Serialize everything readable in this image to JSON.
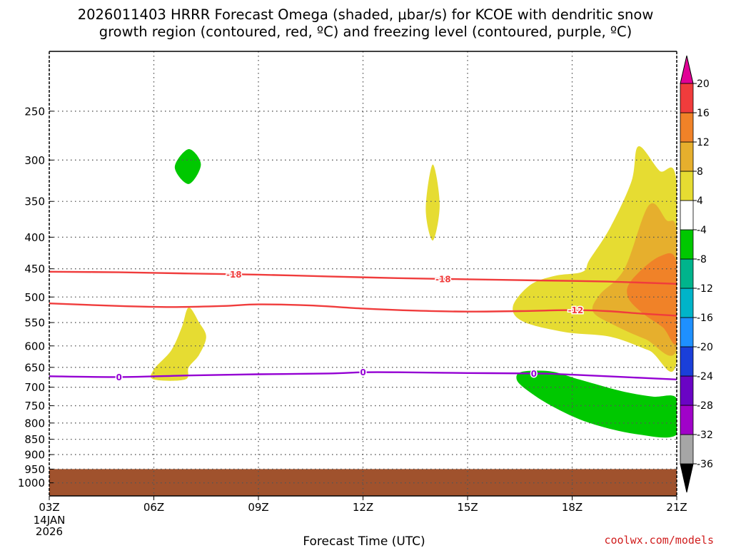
{
  "chart_data": {
    "type": "heatmap",
    "title_line1": "2026011403 HRRR Forecast Omega (shaded, μbar/s) for KCOE with dendritic snow",
    "title_line2": "growth region (contoured, red, ºC) and freezing level (contoured, purple, ºC)",
    "xlabel": "Forecast Time (UTC)",
    "ylabel": "",
    "credit": "coolwx.com/models",
    "x_start_date": [
      "14JAN",
      "2026"
    ],
    "x_ticks": [
      {
        "hour": 3,
        "label": "03Z"
      },
      {
        "hour": 6,
        "label": "06Z"
      },
      {
        "hour": 9,
        "label": "09Z"
      },
      {
        "hour": 12,
        "label": "12Z"
      },
      {
        "hour": 15,
        "label": "15Z"
      },
      {
        "hour": 18,
        "label": "18Z"
      },
      {
        "hour": 21,
        "label": "21Z"
      }
    ],
    "xlim": [
      3,
      21
    ],
    "y_scale": "log",
    "ylim": [
      1050,
      200
    ],
    "y_ticks": [
      250,
      300,
      350,
      400,
      450,
      500,
      550,
      600,
      650,
      700,
      750,
      800,
      850,
      900,
      950,
      1000
    ],
    "grid": true,
    "ground_top_hpa": 950,
    "ground_color": "#a0522d",
    "colorbar": {
      "colors": [
        "#a6a6a6",
        "#a002c8",
        "#6a04c4",
        "#1a3fd9",
        "#1e90ff",
        "#00b4c8",
        "#00b48c",
        "#00c800",
        "#ffffff",
        "#e6dc32",
        "#e6af2d",
        "#f08228",
        "#f03c3c",
        "#e10096"
      ],
      "labels": [
        "-36",
        "-32",
        "-28",
        "-24",
        "-20",
        "-16",
        "-12",
        "-8",
        "-4",
        "4",
        "8",
        "12",
        "16",
        "20"
      ]
    },
    "omega_regions": [
      {
        "color": "#00c800",
        "points": [
          [
            7.0,
            288
          ],
          [
            7.35,
            305
          ],
          [
            7.0,
            328
          ],
          [
            6.6,
            308
          ]
        ]
      },
      {
        "color": "#e6dc32",
        "points": [
          [
            14.0,
            305
          ],
          [
            14.2,
            355
          ],
          [
            14.0,
            405
          ],
          [
            13.8,
            360
          ]
        ]
      },
      {
        "color": "#e6dc32",
        "points": [
          [
            7.0,
            520
          ],
          [
            7.3,
            550
          ],
          [
            7.5,
            580
          ],
          [
            7.3,
            620
          ],
          [
            7.0,
            650
          ],
          [
            6.9,
            680
          ],
          [
            6.0,
            680
          ],
          [
            6.0,
            655
          ],
          [
            6.5,
            610
          ],
          [
            6.8,
            560
          ]
        ]
      },
      {
        "color": "#00c800",
        "points": [
          [
            16.6,
            660
          ],
          [
            17.4,
            660
          ],
          [
            18.2,
            680
          ],
          [
            19.4,
            710
          ],
          [
            20.3,
            725
          ],
          [
            21,
            730
          ],
          [
            21,
            835
          ],
          [
            19.9,
            835
          ],
          [
            18.5,
            800
          ],
          [
            17.4,
            750
          ],
          [
            16.6,
            700
          ],
          [
            16.4,
            675
          ]
        ]
      },
      {
        "color": "#e6dc32",
        "points": [
          [
            19.9,
            285
          ],
          [
            20.5,
            312
          ],
          [
            21,
            328
          ],
          [
            21,
            635
          ],
          [
            20.2,
            610
          ],
          [
            19.1,
            580
          ],
          [
            17.8,
            570
          ],
          [
            16.6,
            548
          ],
          [
            16.3,
            518
          ],
          [
            16.8,
            478
          ],
          [
            17.5,
            462
          ],
          [
            18.3,
            455
          ],
          [
            18.5,
            435
          ],
          [
            19.1,
            385
          ],
          [
            19.7,
            325
          ]
        ]
      },
      {
        "color": "#e6af2d",
        "points": [
          [
            20.2,
            355
          ],
          [
            20.7,
            375
          ],
          [
            21,
            395
          ],
          [
            21,
            608
          ],
          [
            20.1,
            585
          ],
          [
            19.2,
            555
          ],
          [
            18.6,
            528
          ],
          [
            18.8,
            495
          ],
          [
            19.5,
            450
          ]
        ]
      },
      {
        "color": "#f08228",
        "points": [
          [
            20.5,
            430
          ],
          [
            21,
            440
          ],
          [
            21,
            590
          ],
          [
            20.6,
            560
          ],
          [
            20.0,
            530
          ],
          [
            19.6,
            500
          ],
          [
            19.7,
            470
          ]
        ]
      }
    ],
    "series": [
      {
        "name": "-18",
        "color": "#f03c3c",
        "x": [
          3,
          5,
          7,
          9,
          11,
          13,
          15,
          17,
          19,
          21
        ],
        "y": [
          455,
          456,
          458,
          460,
          463,
          466,
          468,
          470,
          472,
          476
        ],
        "labels_at": [
          8.3,
          14.3
        ]
      },
      {
        "name": "-12",
        "color": "#f03c3c",
        "x": [
          3,
          5,
          6.5,
          8,
          9,
          10.5,
          12,
          13.5,
          15,
          16.5,
          18,
          19,
          20,
          21
        ],
        "y": [
          512,
          517,
          519,
          517,
          514,
          516,
          522,
          526,
          528,
          527,
          525,
          527,
          532,
          536
        ],
        "labels_at": [
          18.1
        ]
      },
      {
        "name": "0",
        "color": "#9400d3",
        "x": [
          3,
          5,
          7,
          9,
          11,
          12,
          13,
          15,
          17,
          18,
          19,
          20,
          21
        ],
        "y": [
          672,
          674,
          670,
          667,
          665,
          662,
          662,
          664,
          665,
          668,
          672,
          676,
          680
        ],
        "labels_at": [
          5.0,
          12.0,
          16.9
        ]
      }
    ]
  }
}
